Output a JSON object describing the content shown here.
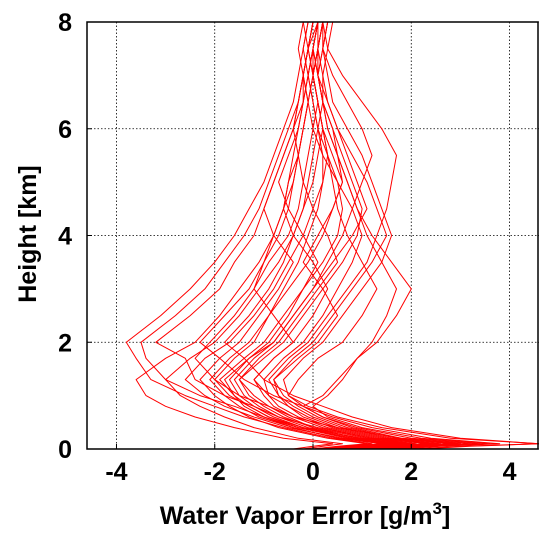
{
  "colors": {
    "series": "#ff0000",
    "axis": "#000000",
    "grid": "#000000"
  },
  "chart_data": {
    "type": "line",
    "title": "",
    "xlabel": "Water Vapor Error [g/m",
    "xlabel_sup": "3",
    "xlabel_end": "]",
    "ylabel": "Height [km]",
    "xlim": [
      -4.6,
      4.6
    ],
    "ylim": [
      0,
      8
    ],
    "xticks": [
      -4,
      -2,
      0,
      2,
      4
    ],
    "yticks": [
      0,
      2,
      4,
      6,
      8
    ],
    "xtick_labels": [
      "-4",
      "-2",
      "0",
      "2",
      "4"
    ],
    "ytick_labels": [
      "0",
      "2",
      "4",
      "6",
      "8"
    ],
    "grid": true,
    "grid_style": "dotted",
    "legend": "none",
    "y": [
      0,
      0.05,
      0.1,
      0.2,
      0.4,
      0.6,
      0.8,
      1.0,
      1.3,
      1.7,
      2.0,
      2.5,
      3.0,
      3.5,
      4.0,
      4.5,
      5.0,
      5.5,
      6.0,
      6.5,
      7.0,
      7.5,
      8.0
    ],
    "series": [
      {
        "x": [
          0.6,
          1.5,
          2.4,
          1.2,
          0.1,
          -0.7,
          -1.2,
          -1.8,
          -2.4,
          -2.6,
          -3.2,
          -2.5,
          -1.9,
          -1.6,
          -1.2,
          -1.0,
          -0.8,
          -0.6,
          -0.4,
          -0.3,
          -0.2,
          -0.1,
          0.0
        ]
      },
      {
        "x": [
          0.2,
          1.0,
          1.9,
          0.8,
          -0.3,
          -1.0,
          -1.6,
          -2.3,
          -3.0,
          -3.4,
          -3.5,
          -2.8,
          -2.2,
          -1.8,
          -1.4,
          -1.1,
          -0.9,
          -0.7,
          -0.5,
          -0.3,
          -0.2,
          -0.1,
          0.1
        ]
      },
      {
        "x": [
          1.2,
          2.2,
          3.2,
          1.8,
          0.5,
          -0.4,
          -0.9,
          -1.5,
          -2.0,
          -2.4,
          -2.1,
          -1.6,
          -1.2,
          -1.0,
          -0.8,
          -0.6,
          -0.5,
          -0.4,
          -0.3,
          -0.2,
          -0.1,
          0.0,
          0.1
        ]
      },
      {
        "x": [
          0.0,
          0.6,
          1.2,
          0.4,
          -0.6,
          -1.4,
          -2.0,
          -2.6,
          -3.3,
          -3.6,
          -3.8,
          -3.1,
          -2.5,
          -2.0,
          -1.6,
          -1.3,
          -1.0,
          -0.8,
          -0.6,
          -0.4,
          -0.3,
          -0.2,
          -0.1
        ]
      },
      {
        "x": [
          1.8,
          2.6,
          3.8,
          2.4,
          1.2,
          0.4,
          -0.2,
          -0.8,
          -1.4,
          -1.9,
          -2.3,
          -1.8,
          -1.3,
          -1.0,
          -0.7,
          -0.5,
          -0.4,
          -0.3,
          -0.2,
          -0.1,
          0.0,
          0.1,
          0.2
        ]
      },
      {
        "x": [
          0.8,
          1.4,
          2.0,
          1.0,
          -0.2,
          -0.9,
          -1.3,
          -1.6,
          -1.9,
          -1.4,
          -1.0,
          -0.6,
          -0.2,
          0.2,
          0.5,
          0.6,
          0.5,
          0.3,
          0.1,
          0.0,
          -0.1,
          0.0,
          0.1
        ]
      },
      {
        "x": [
          0.3,
          0.9,
          1.6,
          0.6,
          -0.5,
          -1.2,
          -1.8,
          -2.2,
          -2.6,
          -2.2,
          -1.7,
          -1.2,
          -0.8,
          -0.5,
          -0.2,
          0.0,
          0.2,
          0.3,
          0.2,
          0.1,
          0.0,
          -0.1,
          0.0
        ]
      },
      {
        "x": [
          2.0,
          3.0,
          4.6,
          3.0,
          1.6,
          0.8,
          0.2,
          -0.4,
          -1.0,
          -1.4,
          -1.8,
          -1.3,
          -0.9,
          -0.6,
          -0.4,
          -0.2,
          -0.1,
          0.0,
          0.1,
          0.2,
          0.2,
          0.3,
          0.4
        ]
      },
      {
        "x": [
          0.5,
          1.2,
          2.0,
          1.1,
          0.0,
          -0.6,
          -1.0,
          -1.3,
          -1.5,
          -1.0,
          -0.6,
          -0.2,
          0.2,
          0.6,
          0.9,
          1.0,
          0.8,
          0.6,
          0.4,
          0.2,
          0.1,
          0.1,
          0.2
        ]
      },
      {
        "x": [
          0.9,
          1.6,
          2.5,
          1.4,
          0.4,
          -0.2,
          -0.5,
          -0.7,
          -0.8,
          -0.4,
          0.0,
          0.4,
          0.8,
          1.2,
          1.5,
          1.3,
          1.1,
          0.8,
          0.5,
          0.3,
          0.2,
          0.1,
          0.1
        ]
      },
      {
        "x": [
          0.1,
          0.7,
          1.4,
          0.5,
          -0.4,
          -1.1,
          -1.5,
          -1.8,
          -2.1,
          -1.7,
          -1.3,
          -0.9,
          -0.5,
          -0.1,
          0.2,
          0.4,
          0.6,
          0.5,
          0.3,
          0.2,
          0.1,
          0.0,
          0.1
        ]
      },
      {
        "x": [
          1.4,
          2.2,
          3.4,
          2.0,
          0.9,
          0.2,
          -0.2,
          -0.5,
          -0.6,
          -0.2,
          0.2,
          0.6,
          1.0,
          1.4,
          1.6,
          1.4,
          1.2,
          1.0,
          0.7,
          0.4,
          0.3,
          0.2,
          0.2
        ]
      },
      {
        "x": [
          0.4,
          1.0,
          1.7,
          0.9,
          -0.1,
          -0.7,
          -1.1,
          -1.4,
          -1.6,
          -1.2,
          -0.8,
          -0.4,
          0.0,
          0.3,
          0.6,
          0.8,
          1.0,
          1.2,
          1.0,
          0.7,
          0.4,
          0.2,
          0.3
        ]
      },
      {
        "x": [
          1.0,
          1.8,
          2.8,
          1.6,
          0.6,
          0.0,
          -0.4,
          -0.7,
          -0.9,
          -0.5,
          -0.1,
          0.3,
          0.7,
          1.1,
          1.3,
          1.5,
          1.6,
          1.7,
          1.4,
          1.0,
          0.6,
          0.3,
          0.2
        ]
      },
      {
        "x": [
          0.2,
          0.8,
          1.5,
          0.7,
          -0.3,
          -0.9,
          -1.3,
          -1.7,
          -2.0,
          -1.6,
          -1.2,
          -0.9,
          -0.6,
          -0.3,
          -0.1,
          0.1,
          0.2,
          0.2,
          0.1,
          0.0,
          -0.1,
          -0.2,
          -0.1
        ]
      },
      {
        "x": [
          1.6,
          2.4,
          3.6,
          2.2,
          1.0,
          0.3,
          0.0,
          0.3,
          0.6,
          0.9,
          1.2,
          1.5,
          1.7,
          1.4,
          1.1,
          0.9,
          0.7,
          0.5,
          0.3,
          0.2,
          0.1,
          0.2,
          0.3
        ]
      },
      {
        "x": [
          0.7,
          1.3,
          2.1,
          1.2,
          0.2,
          -0.4,
          -0.8,
          -1.0,
          -1.2,
          -0.8,
          -0.4,
          0.0,
          0.3,
          0.0,
          -0.4,
          -0.6,
          -0.5,
          -0.3,
          -0.2,
          -0.1,
          -0.2,
          -0.1,
          0.0
        ]
      },
      {
        "x": [
          0.0,
          0.5,
          1.1,
          0.3,
          -0.7,
          -1.3,
          -1.7,
          -2.0,
          -2.3,
          -1.9,
          -1.5,
          -1.1,
          -0.7,
          -0.4,
          -0.8,
          -1.0,
          -0.8,
          -0.6,
          -0.4,
          -0.2,
          -0.1,
          0.0,
          0.1
        ]
      },
      {
        "x": [
          1.1,
          1.9,
          2.9,
          1.7,
          0.7,
          0.1,
          -0.3,
          -0.6,
          -0.8,
          -0.3,
          0.1,
          0.5,
          0.2,
          -0.2,
          0.1,
          0.4,
          0.6,
          0.4,
          0.2,
          0.1,
          0.0,
          0.1,
          0.2
        ]
      },
      {
        "x": [
          0.6,
          1.1,
          1.8,
          0.9,
          0.0,
          -0.5,
          -0.9,
          -1.2,
          -1.5,
          -1.1,
          -0.7,
          -0.3,
          0.1,
          0.5,
          0.3,
          0.0,
          -0.2,
          -0.1,
          0.0,
          0.1,
          0.0,
          -0.1,
          0.0
        ]
      },
      {
        "x": [
          0.3,
          0.9,
          1.5,
          0.5,
          -0.4,
          -1.0,
          -1.4,
          -1.6,
          -1.8,
          -1.3,
          -0.8,
          -0.4,
          0.0,
          0.4,
          0.8,
          1.1,
          0.9,
          0.7,
          0.5,
          0.3,
          0.1,
          0.0,
          0.1
        ]
      },
      {
        "x": [
          0.9,
          1.7,
          2.6,
          1.5,
          0.5,
          -0.1,
          -0.5,
          -0.9,
          -1.2,
          -0.8,
          -0.4,
          -0.8,
          -1.2,
          -0.9,
          -0.5,
          -0.3,
          -0.2,
          -0.3,
          -0.4,
          -0.3,
          -0.2,
          -0.1,
          -0.2
        ]
      },
      {
        "x": [
          -0.2,
          0.2,
          0.6,
          -0.3,
          -1.2,
          -1.8,
          -2.3,
          -2.7,
          -3.0,
          -2.5,
          -2.0,
          -1.5,
          -1.1,
          -0.7,
          -0.4,
          -0.2,
          0.0,
          0.1,
          0.2,
          0.1,
          0.0,
          0.0,
          0.1
        ]
      },
      {
        "x": [
          1.3,
          2.0,
          3.0,
          1.8,
          0.8,
          0.2,
          -0.2,
          0.2,
          0.5,
          0.9,
          1.3,
          1.7,
          2.0,
          1.6,
          1.2,
          0.9,
          0.7,
          0.5,
          0.4,
          0.2,
          0.1,
          0.2,
          0.3
        ]
      },
      {
        "x": [
          0.5,
          1.0,
          1.6,
          0.8,
          -0.2,
          -0.8,
          -1.2,
          -1.5,
          -1.7,
          -1.3,
          -0.9,
          -0.5,
          -0.2,
          0.1,
          -0.2,
          -0.5,
          -0.7,
          -0.5,
          -0.3,
          -0.2,
          -0.2,
          -0.3,
          -0.2
        ]
      },
      {
        "x": [
          2.2,
          3.2,
          4.6,
          2.8,
          1.4,
          0.5,
          -0.1,
          -0.5,
          -0.3,
          0.1,
          0.6,
          1.0,
          1.3,
          1.0,
          0.7,
          0.5,
          0.4,
          0.3,
          0.2,
          0.1,
          0.0,
          0.1,
          0.2
        ]
      },
      {
        "x": [
          -0.4,
          0.0,
          0.4,
          -0.6,
          -1.6,
          -2.4,
          -3.0,
          -3.4,
          -3.6,
          -3.0,
          -2.4,
          -1.9,
          -1.5,
          -1.1,
          -0.8,
          -0.6,
          -0.4,
          -0.3,
          -0.2,
          -0.1,
          0.0,
          0.1,
          0.2
        ]
      },
      {
        "x": [
          0.8,
          1.5,
          2.3,
          1.3,
          0.3,
          -0.3,
          -0.7,
          -0.9,
          -1.0,
          -0.6,
          -0.2,
          0.2,
          0.5,
          0.8,
          1.0,
          0.8,
          0.5,
          0.2,
          0.0,
          -0.1,
          -0.2,
          -0.1,
          0.0
        ]
      }
    ]
  }
}
